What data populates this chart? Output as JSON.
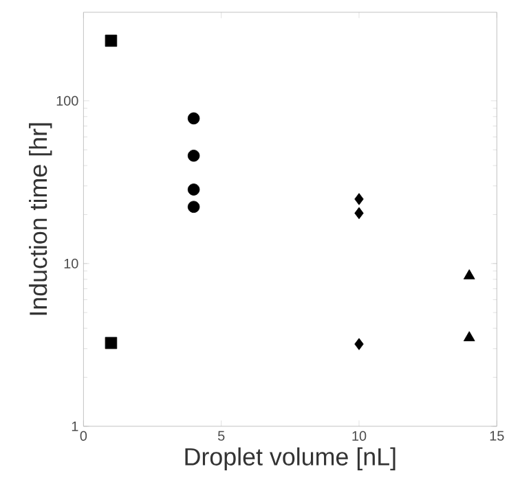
{
  "chart_data": {
    "type": "scatter",
    "xlabel": "Droplet volume [nL]",
    "ylabel": "Induction time [hr]",
    "log": "y",
    "xlim": [
      0,
      15
    ],
    "xticks": [
      0,
      5,
      10,
      15
    ],
    "ylim": [
      1,
      350
    ],
    "yticks": [
      1,
      10,
      100
    ],
    "series": [
      {
        "color": "#000000",
        "marker": "square",
        "x": [
          1,
          1
        ],
        "values": [
          234,
          3.25
        ]
      },
      {
        "color": "#000000",
        "marker": "circle",
        "x": [
          4,
          4,
          4,
          4
        ],
        "values": [
          78,
          46,
          28.5,
          22.3
        ]
      },
      {
        "color": "#000000",
        "marker": "diamond",
        "x": [
          10,
          10,
          10
        ],
        "values": [
          24.9,
          20.4,
          3.2
        ]
      },
      {
        "color": "#000000",
        "marker": "triangle",
        "x": [
          14,
          14
        ],
        "values": [
          8.4,
          3.5
        ]
      }
    ]
  }
}
